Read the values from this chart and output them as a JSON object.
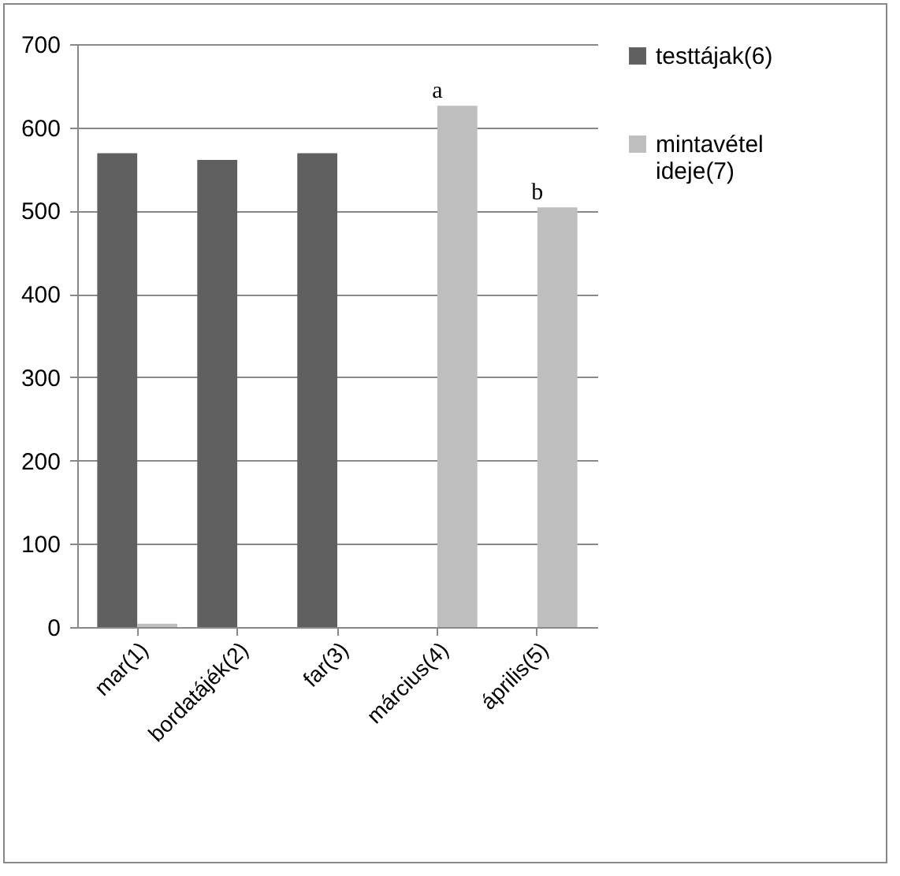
{
  "chart_data": {
    "type": "bar",
    "categories": [
      "mar(1)",
      "bordatájék(2)",
      "far(3)",
      "március(4)",
      "április(5)"
    ],
    "series": [
      {
        "name": "testtájak(6)",
        "color": "#606060",
        "values": [
          569,
          561,
          569,
          null,
          null
        ]
      },
      {
        "name": "mintavétel ideje(7)",
        "color": "#bebebe",
        "values": [
          4,
          null,
          null,
          626,
          504
        ]
      }
    ],
    "annotations": [
      {
        "text": "a",
        "x": "március(4)",
        "y": 626
      },
      {
        "text": "b",
        "x": "április(5)",
        "y": 504
      }
    ],
    "ylim": [
      0,
      700
    ],
    "yticks": [
      0,
      100,
      200,
      300,
      400,
      500,
      600,
      700
    ],
    "grid": "y",
    "legend": "right"
  }
}
